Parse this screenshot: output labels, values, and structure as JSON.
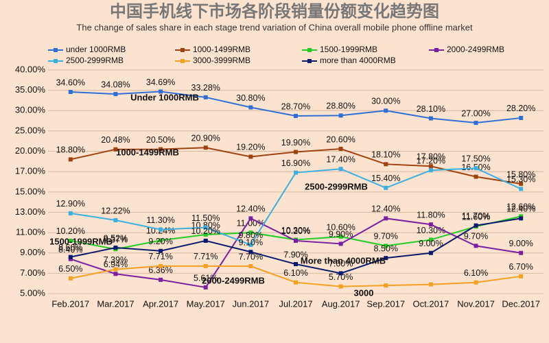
{
  "chart_data": {
    "type": "line",
    "title": "中国手机线下市场各阶段销量份额变化趋势图",
    "subtitle": "The change of sales share in each stage trend variation of China overall mobile phone offline market",
    "categories": [
      "Feb.2017",
      "Mar.2017",
      "Apr.2017",
      "May.2017",
      "Jun.2017",
      "Jul.2017",
      "Aug.2017",
      "Sep.2017",
      "Oct.2017",
      "Nov.2017",
      "Dec.2017"
    ],
    "ylim": [
      5,
      40
    ],
    "yticks": [
      {
        "value": 5,
        "label": "5.00%"
      },
      {
        "value": 7,
        "label": "7.00%"
      },
      {
        "value": 9,
        "label": "9.00%"
      },
      {
        "value": 11,
        "label": "11.00%"
      },
      {
        "value": 13,
        "label": "13.00%"
      },
      {
        "value": 15,
        "label": "15.00%"
      },
      {
        "value": 17,
        "label": "17.00%"
      },
      {
        "value": 20,
        "label": "20.00%"
      },
      {
        "value": 25,
        "label": "25.00%"
      },
      {
        "value": 30,
        "label": "30.00%"
      },
      {
        "value": 35,
        "label": "35.00%"
      },
      {
        "value": 40,
        "label": "40.00%"
      }
    ],
    "grid": true,
    "legend": "top",
    "series": [
      {
        "name": "under 1000RMB",
        "color": "#2e6fd6",
        "values": [
          34.6,
          34.08,
          34.69,
          33.28,
          30.8,
          28.7,
          28.8,
          30.0,
          28.1,
          27.0,
          28.2
        ],
        "value_labels": [
          "34.60%",
          "34.08%",
          "34.69%",
          "33.28%",
          "30.80%",
          "28.70%",
          "28.80%",
          "30.00%",
          "28.10%",
          "27.00%",
          "28.20%"
        ]
      },
      {
        "name": "1000-1499RMB",
        "color": "#a0420f",
        "values": [
          18.8,
          20.48,
          20.5,
          20.9,
          19.2,
          19.9,
          20.6,
          18.1,
          17.8,
          16.5,
          15.8
        ],
        "value_labels": [
          "18.80%",
          "20.48%",
          "20.50%",
          "20.90%",
          "19.20%",
          "19.90%",
          "20.60%",
          "18.10%",
          "17.80%",
          "16.50%",
          "15.80%"
        ]
      },
      {
        "name": "1500-1999RMB",
        "color": "#22cc22",
        "values": [
          10.2,
          9.37,
          10.24,
          10.8,
          11.0,
          10.3,
          10.6,
          9.7,
          10.3,
          11.6,
          12.6
        ],
        "value_labels": [
          "10.20%",
          "9.37%",
          "10.24%",
          "10.80%",
          "11.00%",
          "10.30%",
          "10.60%",
          "9.70%",
          "10.30%",
          "11.60%",
          "12.60%"
        ]
      },
      {
        "name": "2000-2499RMB",
        "color": "#7a1fa2",
        "values": [
          8.4,
          6.94,
          6.36,
          5.61,
          12.4,
          10.2,
          9.9,
          12.4,
          11.8,
          9.7,
          9.0
        ],
        "value_labels": [
          "8.40%",
          "6.94%",
          "6.36%",
          "5.61%",
          "12.40%",
          "10.20%",
          "9.90%",
          "12.40%",
          "11.80%",
          "9.70%",
          "9.00%"
        ]
      },
      {
        "name": "2500-2999RMB",
        "color": "#3ab0e0",
        "values": [
          12.9,
          12.22,
          11.3,
          11.5,
          9.8,
          16.9,
          17.4,
          15.4,
          17.2,
          17.5,
          15.3
        ],
        "value_labels": [
          "12.90%",
          "12.22%",
          "11.30%",
          "11.50%",
          "9.80%",
          "16.90%",
          "17.40%",
          "15.40%",
          "17.20%",
          "17.50%",
          "15.30%"
        ]
      },
      {
        "name": "3000-3999RMB",
        "color": "#f5a020",
        "values": [
          6.5,
          7.39,
          7.71,
          7.71,
          7.7,
          6.1,
          5.7,
          5.8,
          5.9,
          6.1,
          6.7
        ],
        "value_labels": [
          "6.50%",
          "7.39%",
          "7.71%",
          "7.71%",
          "7.70%",
          "6.10%",
          "5.70%",
          null,
          null,
          "6.10%",
          "6.70%"
        ]
      },
      {
        "name": "more than 4000RMB",
        "color": "#0a1a6e",
        "values": [
          8.6,
          9.52,
          9.2,
          10.2,
          9.1,
          7.9,
          7.0,
          8.5,
          9.0,
          11.7,
          12.4
        ],
        "value_labels": [
          "8.60%",
          "9.52%",
          "9.20%",
          "10.20%",
          "9.10%",
          "7.90%",
          "7.00%",
          "8.50%",
          "9.00%",
          "11.70%",
          "12.40%"
        ]
      }
    ],
    "annotations": [
      "Under 1000RMB",
      "1000-1499RMB",
      "1500-1999RMB",
      "2000-2499RMB",
      "2500-2999RMB",
      "3000",
      "More than 4000RMB"
    ]
  }
}
